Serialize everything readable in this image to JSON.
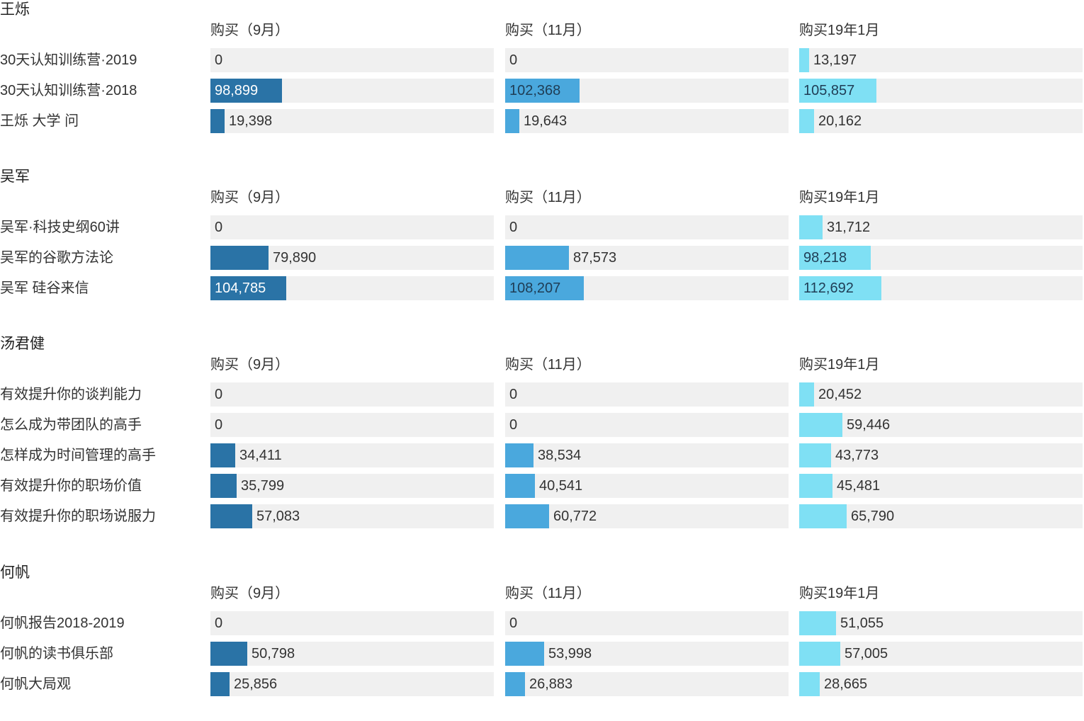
{
  "chart_data": {
    "type": "bar",
    "columns": [
      "购买（9月）",
      "购买（11月）",
      "购买19年1月"
    ],
    "colors": [
      "#2a73a6",
      "#4aa8dd",
      "#7fe0f4"
    ],
    "xlim": [
      0,
      390000
    ],
    "groups": [
      {
        "name": "王烁",
        "rows": [
          {
            "label": "30天认知训练营·2019",
            "values": [
              0,
              0,
              13197
            ],
            "display": [
              "0",
              "0",
              "13,197"
            ]
          },
          {
            "label": "30天认知训练营·2018",
            "values": [
              98899,
              102368,
              105857
            ],
            "display": [
              "98,899",
              "102,368",
              "105,857"
            ]
          },
          {
            "label": "王烁 大学 问",
            "values": [
              19398,
              19643,
              20162
            ],
            "display": [
              "19,398",
              "19,643",
              "20,162"
            ]
          }
        ]
      },
      {
        "name": "吴军",
        "rows": [
          {
            "label": "吴军·科技史纲60讲",
            "values": [
              0,
              0,
              31712
            ],
            "display": [
              "0",
              "0",
              "31,712"
            ]
          },
          {
            "label": "吴军的谷歌方法论",
            "values": [
              79890,
              87573,
              98218
            ],
            "display": [
              "79,890",
              "87,573",
              "98,218"
            ]
          },
          {
            "label": "吴军 硅谷来信",
            "values": [
              104785,
              108207,
              112692
            ],
            "display": [
              "104,785",
              "108,207",
              "112,692"
            ]
          }
        ]
      },
      {
        "name": "汤君健",
        "rows": [
          {
            "label": "有效提升你的谈判能力",
            "values": [
              0,
              0,
              20452
            ],
            "display": [
              "0",
              "0",
              "20,452"
            ]
          },
          {
            "label": "怎么成为带团队的高手",
            "values": [
              0,
              0,
              59446
            ],
            "display": [
              "0",
              "0",
              "59,446"
            ]
          },
          {
            "label": "怎样成为时间管理的高手",
            "values": [
              34411,
              38534,
              43773
            ],
            "display": [
              "34,411",
              "38,534",
              "43,773"
            ]
          },
          {
            "label": "有效提升你的职场价值",
            "values": [
              35799,
              40541,
              45481
            ],
            "display": [
              "35,799",
              "40,541",
              "45,481"
            ]
          },
          {
            "label": "有效提升你的职场说服力",
            "values": [
              57083,
              60772,
              65790
            ],
            "display": [
              "57,083",
              "60,772",
              "65,790"
            ]
          }
        ]
      },
      {
        "name": "何帆",
        "rows": [
          {
            "label": "何帆报告2018-2019",
            "values": [
              0,
              0,
              51055
            ],
            "display": [
              "0",
              "0",
              "51,055"
            ]
          },
          {
            "label": "何帆的读书俱乐部",
            "values": [
              50798,
              53998,
              57005
            ],
            "display": [
              "50,798",
              "53,998",
              "57,005"
            ]
          },
          {
            "label": "何帆大局观",
            "values": [
              25856,
              26883,
              28665
            ],
            "display": [
              "25,856",
              "26,883",
              "28,665"
            ]
          }
        ]
      }
    ]
  }
}
